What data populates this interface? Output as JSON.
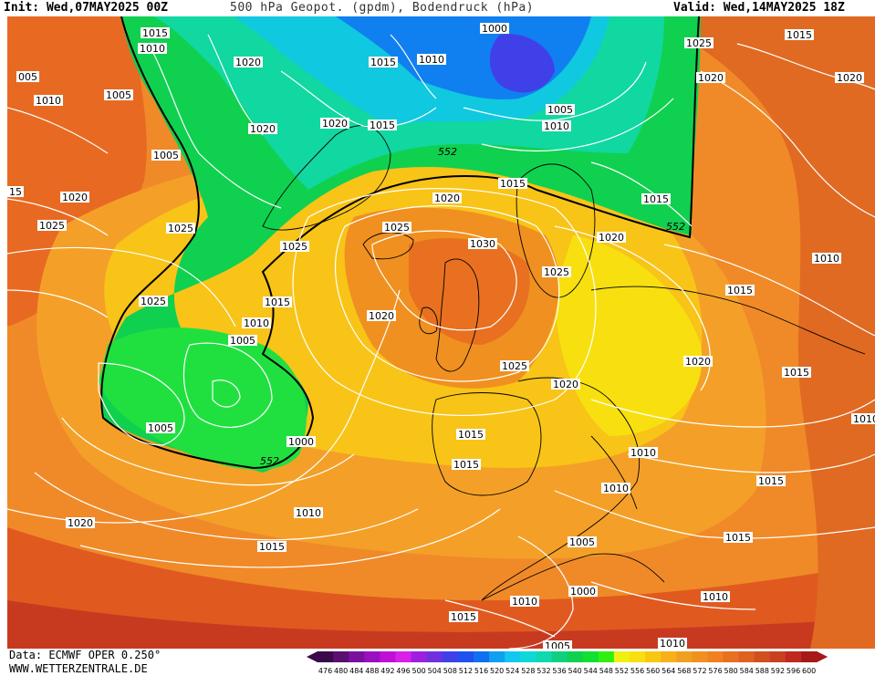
{
  "header": {
    "init": "Init: Wed,07MAY2025 00Z",
    "title": "500 hPa Geopot. (gpdm), Bodendruck (hPa)",
    "valid": "Valid: Wed,14MAY2025 18Z"
  },
  "footer": {
    "source": "Data: ECMWF OPER 0.250°",
    "site": "WWW.WETTERZENTRALE.DE"
  },
  "legend": {
    "ticks": [
      "476",
      "480",
      "484",
      "488",
      "492",
      "496",
      "500",
      "504",
      "508",
      "512",
      "516",
      "520",
      "524",
      "528",
      "532",
      "536",
      "540",
      "544",
      "548",
      "552",
      "556",
      "560",
      "564",
      "568",
      "572",
      "576",
      "580",
      "584",
      "588",
      "592",
      "596",
      "600"
    ],
    "colors": [
      "#3a0a4a",
      "#5a1070",
      "#7a10a0",
      "#9a10c0",
      "#c010d8",
      "#d820e8",
      "#a020e0",
      "#7030e0",
      "#4040e8",
      "#2050f0",
      "#1070f0",
      "#10a0f0",
      "#10c8f0",
      "#10d8d8",
      "#10d8b0",
      "#10d080",
      "#10d050",
      "#10e030",
      "#30f010",
      "#f0f010",
      "#f8e010",
      "#f8c810",
      "#f8b018",
      "#f0a020",
      "#f09020",
      "#f08020",
      "#e87020",
      "#e06020",
      "#d05020",
      "#c84020",
      "#c02820",
      "#a81818"
    ]
  },
  "isobar_labels": [
    {
      "text": "1015"
    },
    {
      "text": "1010"
    },
    {
      "text": "1020"
    },
    {
      "text": "1015"
    },
    {
      "text": "1010"
    },
    {
      "text": "1000"
    },
    {
      "text": "1025"
    },
    {
      "text": "1015"
    },
    {
      "text": "005"
    },
    {
      "text": "1010"
    },
    {
      "text": "1005"
    },
    {
      "text": "1020"
    },
    {
      "text": "1020"
    },
    {
      "text": "1015"
    },
    {
      "text": "1005"
    },
    {
      "text": "1010"
    },
    {
      "text": "1005"
    },
    {
      "text": "1020"
    },
    {
      "text": "1020"
    },
    {
      "text": "1015"
    },
    {
      "text": "1020"
    },
    {
      "text": "1015"
    },
    {
      "text": "1025"
    },
    {
      "text": "1020"
    },
    {
      "text": "1030"
    },
    {
      "text": "1025"
    },
    {
      "text": "1020"
    },
    {
      "text": "1010"
    },
    {
      "text": "1025"
    },
    {
      "text": "1025"
    },
    {
      "text": "1015"
    },
    {
      "text": "1015"
    },
    {
      "text": "1010"
    },
    {
      "text": "1020"
    },
    {
      "text": "1005"
    },
    {
      "text": "1025"
    },
    {
      "text": "1020"
    },
    {
      "text": "1015"
    },
    {
      "text": "1005"
    },
    {
      "text": "1000"
    },
    {
      "text": "1015"
    },
    {
      "text": "1015"
    },
    {
      "text": "1010"
    },
    {
      "text": "1010"
    },
    {
      "text": "1015"
    },
    {
      "text": "1010"
    },
    {
      "text": "1020"
    },
    {
      "text": "1015"
    },
    {
      "text": "1015"
    },
    {
      "text": "1005"
    },
    {
      "text": "1000"
    },
    {
      "text": "1010"
    },
    {
      "text": "1010"
    },
    {
      "text": "1015"
    },
    {
      "text": "1005"
    },
    {
      "text": "1010"
    },
    {
      "text": "1010"
    },
    {
      "text": "1025"
    },
    {
      "text": "15"
    },
    {
      "text": "1020"
    },
    {
      "text": "1025"
    }
  ],
  "contour_labels": [
    "552",
    "552",
    "552"
  ]
}
